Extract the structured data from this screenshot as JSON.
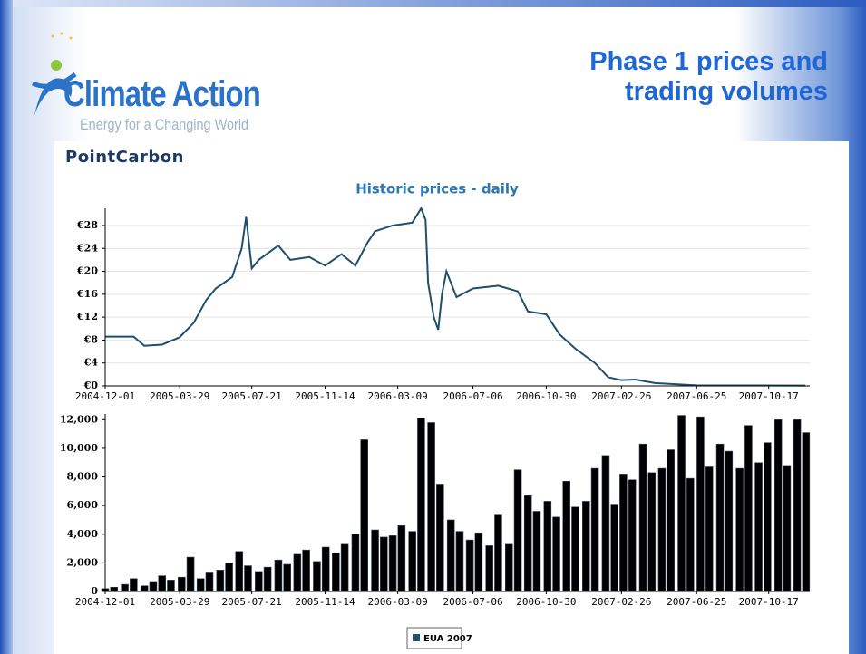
{
  "header": {
    "logo": "Climate Action",
    "tagline": "Energy for a Changing World",
    "title": "Phase 1 prices and trading volumes"
  },
  "brand": "PointCarbon",
  "chart_data": [
    {
      "type": "line",
      "title": "Historic prices - daily",
      "color": "#1f4e6e",
      "xlim": [
        "2004-12-01",
        "2007-12-21"
      ],
      "xticks": [
        "2004-12-01",
        "2005-03-29",
        "2005-07-21",
        "2005-11-14",
        "2006-03-09",
        "2006-07-06",
        "2006-10-30",
        "2007-02-26",
        "2007-06-25",
        "2007-10-17"
      ],
      "ylim": [
        0,
        31
      ],
      "yticks": [
        {
          "value": 0,
          "label": "€0"
        },
        {
          "value": 4,
          "label": "€4"
        },
        {
          "value": 8,
          "label": "€8"
        },
        {
          "value": 12,
          "label": "€12"
        },
        {
          "value": 16,
          "label": "€16"
        },
        {
          "value": 20,
          "label": "€20"
        },
        {
          "value": 24,
          "label": "€24"
        },
        {
          "value": 28,
          "label": "€28"
        }
      ],
      "grid": true,
      "x": [
        "2004-12-01",
        "2005-01-15",
        "2005-02-01",
        "2005-03-01",
        "2005-03-29",
        "2005-04-20",
        "2005-05-10",
        "2005-05-25",
        "2005-06-20",
        "2005-07-05",
        "2005-07-12",
        "2005-07-21",
        "2005-08-01",
        "2005-09-01",
        "2005-09-20",
        "2005-10-20",
        "2005-11-14",
        "2005-12-10",
        "2006-01-01",
        "2006-01-20",
        "2006-02-01",
        "2006-03-01",
        "2006-04-01",
        "2006-04-15",
        "2006-04-22",
        "2006-04-26",
        "2006-05-05",
        "2006-05-12",
        "2006-05-18",
        "2006-05-25",
        "2006-06-10",
        "2006-07-06",
        "2006-08-15",
        "2006-09-15",
        "2006-10-01",
        "2006-10-30",
        "2006-11-20",
        "2006-12-15",
        "2007-01-15",
        "2007-02-05",
        "2007-02-26",
        "2007-03-20",
        "2007-04-20",
        "2007-06-25",
        "2007-12-14"
      ],
      "values": [
        8.6,
        8.6,
        7.0,
        7.2,
        8.5,
        11,
        15,
        17,
        19,
        24,
        29.5,
        20.5,
        22,
        24.5,
        22,
        22.5,
        21,
        23,
        21,
        25,
        27,
        28,
        28.5,
        31,
        29,
        18,
        12,
        9.8,
        16,
        20,
        15.5,
        17,
        17.5,
        16.5,
        13,
        12.5,
        9,
        6.5,
        4,
        1.5,
        1.0,
        1.1,
        0.5,
        0.1,
        0.05
      ]
    },
    {
      "type": "bar",
      "color": "#000000",
      "legend": "EUA 2007",
      "legend_color": "#1f4e6e",
      "xlim": [
        "2004-12-01",
        "2007-12-21"
      ],
      "xticks": [
        "2004-12-01",
        "2005-03-29",
        "2005-07-21",
        "2005-11-14",
        "2006-03-09",
        "2006-07-06",
        "2006-10-30",
        "2007-02-26",
        "2007-06-25",
        "2007-10-17"
      ],
      "ylim": [
        0,
        12400
      ],
      "yticks": [
        0,
        {
          "value": 2000,
          "label": "2,000"
        },
        {
          "value": 4000,
          "label": "4,000"
        },
        {
          "value": 6000,
          "label": "6,000"
        },
        {
          "value": 8000,
          "label": "8,000"
        },
        {
          "value": 10000,
          "label": "10,000"
        },
        {
          "value": 12000,
          "label": "12,000"
        }
      ],
      "grid": false,
      "x": [
        "2004-12-01",
        "2004-12-15",
        "2005-01-01",
        "2005-01-15",
        "2005-02-01",
        "2005-02-15",
        "2005-03-01",
        "2005-03-15",
        "2005-04-01",
        "2005-04-15",
        "2005-05-01",
        "2005-05-15",
        "2005-06-01",
        "2005-06-15",
        "2005-07-01",
        "2005-07-15",
        "2005-08-01",
        "2005-08-15",
        "2005-09-01",
        "2005-09-15",
        "2005-10-01",
        "2005-10-15",
        "2005-11-01",
        "2005-11-15",
        "2005-12-01",
        "2005-12-15",
        "2006-01-01",
        "2006-01-15",
        "2006-02-01",
        "2006-02-15",
        "2006-03-01",
        "2006-03-15",
        "2006-04-01",
        "2006-04-15",
        "2006-05-01",
        "2006-05-15",
        "2006-06-01",
        "2006-06-15",
        "2006-07-01",
        "2006-07-15",
        "2006-08-01",
        "2006-08-15",
        "2006-09-01",
        "2006-09-15",
        "2006-10-01",
        "2006-10-15",
        "2006-11-01",
        "2006-11-15",
        "2006-12-01",
        "2006-12-15",
        "2007-01-01",
        "2007-01-15",
        "2007-02-01",
        "2007-02-15",
        "2007-03-01",
        "2007-03-15",
        "2007-04-01",
        "2007-04-15",
        "2007-05-01",
        "2007-05-15",
        "2007-06-01",
        "2007-06-15",
        "2007-07-01",
        "2007-07-15",
        "2007-08-01",
        "2007-08-15",
        "2007-09-01",
        "2007-09-15",
        "2007-10-01",
        "2007-10-15",
        "2007-11-01",
        "2007-11-15",
        "2007-12-01",
        "2007-12-15"
      ],
      "values": [
        200,
        300,
        500,
        900,
        400,
        700,
        1100,
        800,
        1000,
        2400,
        900,
        1300,
        1500,
        2000,
        2800,
        1800,
        1400,
        1700,
        2200,
        1900,
        2600,
        2900,
        2100,
        3100,
        2700,
        3300,
        4000,
        10600,
        4300,
        3800,
        3900,
        4600,
        4200,
        12100,
        11800,
        7500,
        5000,
        4200,
        3600,
        4100,
        3200,
        5400,
        3300,
        8500,
        6700,
        5600,
        6300,
        5200,
        7700,
        5900,
        6300,
        8600,
        9500,
        6100,
        8200,
        7800,
        10300,
        8300,
        8600,
        9900,
        12300,
        7900,
        12200,
        8700,
        10300,
        9800,
        8600,
        11600,
        9000,
        10400,
        12000,
        8800,
        12000,
        11100
      ]
    }
  ]
}
